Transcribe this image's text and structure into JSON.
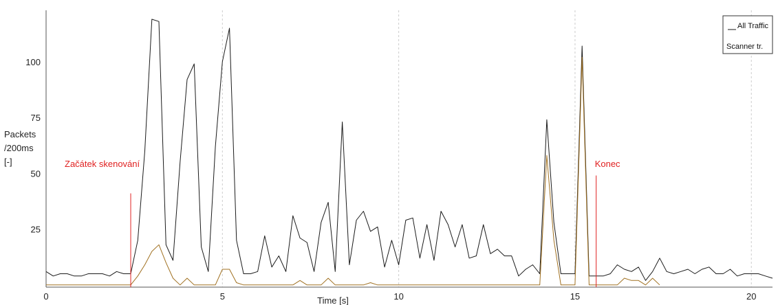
{
  "chart_data": {
    "type": "line",
    "xlabel": "Time [s]",
    "ylabel": [
      "Packets",
      "/200ms",
      "[-]"
    ],
    "xlim": [
      0,
      20.6
    ],
    "ylim": [
      -1,
      123
    ],
    "x_ticks": [
      0,
      5,
      10,
      15,
      20
    ],
    "y_ticks": [
      25,
      50,
      75,
      100
    ],
    "grid": "vertical dashed at x ticks",
    "legend": {
      "placement": "top-right",
      "entries": [
        "All Traffic",
        "Scanner tr."
      ]
    },
    "markers": [
      {
        "label": "Začátek skenování",
        "x": 2.4,
        "color": "#e02020"
      },
      {
        "label": "Konec",
        "x": 15.6,
        "color": "#e02020"
      }
    ],
    "series": [
      {
        "name": "All Traffic",
        "color": "#1a1a1a",
        "points": [
          [
            0,
            6
          ],
          [
            0.2,
            4
          ],
          [
            0.4,
            5
          ],
          [
            0.6,
            5
          ],
          [
            0.8,
            4
          ],
          [
            1.0,
            4
          ],
          [
            1.2,
            5
          ],
          [
            1.4,
            5
          ],
          [
            1.6,
            5
          ],
          [
            1.8,
            4
          ],
          [
            2.0,
            6
          ],
          [
            2.2,
            5
          ],
          [
            2.4,
            5
          ],
          [
            2.6,
            20
          ],
          [
            2.8,
            60
          ],
          [
            3.0,
            119
          ],
          [
            3.2,
            118
          ],
          [
            3.4,
            18
          ],
          [
            3.6,
            11
          ],
          [
            3.8,
            55
          ],
          [
            4.0,
            92
          ],
          [
            4.2,
            99
          ],
          [
            4.4,
            17
          ],
          [
            4.6,
            6
          ],
          [
            4.8,
            62
          ],
          [
            5.0,
            100
          ],
          [
            5.2,
            115
          ],
          [
            5.4,
            20
          ],
          [
            5.6,
            5
          ],
          [
            5.8,
            5
          ],
          [
            6.0,
            6
          ],
          [
            6.2,
            22
          ],
          [
            6.4,
            8
          ],
          [
            6.6,
            13
          ],
          [
            6.8,
            6
          ],
          [
            7.0,
            31
          ],
          [
            7.2,
            21
          ],
          [
            7.4,
            19
          ],
          [
            7.6,
            6
          ],
          [
            7.8,
            28
          ],
          [
            8.0,
            37
          ],
          [
            8.2,
            6
          ],
          [
            8.4,
            73
          ],
          [
            8.6,
            9
          ],
          [
            8.8,
            29
          ],
          [
            9.0,
            33
          ],
          [
            9.2,
            24
          ],
          [
            9.4,
            26
          ],
          [
            9.6,
            8
          ],
          [
            9.8,
            20
          ],
          [
            10.0,
            9
          ],
          [
            10.2,
            29
          ],
          [
            10.4,
            30
          ],
          [
            10.6,
            12
          ],
          [
            10.8,
            27
          ],
          [
            11.0,
            11
          ],
          [
            11.2,
            33
          ],
          [
            11.4,
            27
          ],
          [
            11.6,
            17
          ],
          [
            11.8,
            27
          ],
          [
            12.0,
            12
          ],
          [
            12.2,
            13
          ],
          [
            12.4,
            27
          ],
          [
            12.6,
            14
          ],
          [
            12.8,
            16
          ],
          [
            13.0,
            13
          ],
          [
            13.2,
            13
          ],
          [
            13.4,
            4
          ],
          [
            13.6,
            7
          ],
          [
            13.8,
            9
          ],
          [
            14.0,
            5
          ],
          [
            14.2,
            74
          ],
          [
            14.4,
            28
          ],
          [
            14.6,
            5
          ],
          [
            14.8,
            5
          ],
          [
            15.0,
            5
          ],
          [
            15.2,
            107
          ],
          [
            15.4,
            4
          ],
          [
            15.6,
            4
          ],
          [
            15.8,
            4
          ],
          [
            16.0,
            5
          ],
          [
            16.2,
            9
          ],
          [
            16.4,
            7
          ],
          [
            16.6,
            6
          ],
          [
            16.8,
            8
          ],
          [
            17.0,
            2
          ],
          [
            17.2,
            6
          ],
          [
            17.4,
            12
          ],
          [
            17.6,
            6
          ],
          [
            17.8,
            5
          ],
          [
            18.0,
            6
          ],
          [
            18.2,
            7
          ],
          [
            18.4,
            5
          ],
          [
            18.6,
            7
          ],
          [
            18.8,
            8
          ],
          [
            19.0,
            5
          ],
          [
            19.2,
            5
          ],
          [
            19.4,
            7
          ],
          [
            19.6,
            4
          ],
          [
            19.8,
            5
          ],
          [
            20.0,
            5
          ],
          [
            20.2,
            5
          ],
          [
            20.4,
            4
          ],
          [
            20.6,
            3
          ]
        ]
      },
      {
        "name": "Scanner tr.",
        "color": "#a07020",
        "points": [
          [
            0,
            0
          ],
          [
            2.4,
            0
          ],
          [
            2.6,
            4
          ],
          [
            2.8,
            9
          ],
          [
            3.0,
            15
          ],
          [
            3.2,
            18
          ],
          [
            3.4,
            10
          ],
          [
            3.6,
            3
          ],
          [
            3.8,
            0
          ],
          [
            4.0,
            3
          ],
          [
            4.2,
            0
          ],
          [
            4.6,
            0
          ],
          [
            4.8,
            0
          ],
          [
            5.0,
            7
          ],
          [
            5.2,
            7
          ],
          [
            5.4,
            1
          ],
          [
            5.6,
            0
          ],
          [
            7.0,
            0
          ],
          [
            7.2,
            2
          ],
          [
            7.4,
            0
          ],
          [
            7.8,
            0
          ],
          [
            8.0,
            3
          ],
          [
            8.2,
            0
          ],
          [
            8.4,
            0
          ],
          [
            9.0,
            0
          ],
          [
            9.2,
            1
          ],
          [
            9.4,
            0
          ],
          [
            14.0,
            0
          ],
          [
            14.2,
            58
          ],
          [
            14.4,
            20
          ],
          [
            14.6,
            0
          ],
          [
            15.0,
            0
          ],
          [
            15.2,
            102
          ],
          [
            15.4,
            0
          ],
          [
            16.2,
            0
          ],
          [
            16.4,
            3
          ],
          [
            16.6,
            2
          ],
          [
            16.8,
            2
          ],
          [
            17.0,
            0
          ],
          [
            17.2,
            3
          ],
          [
            17.4,
            0
          ]
        ]
      }
    ]
  }
}
